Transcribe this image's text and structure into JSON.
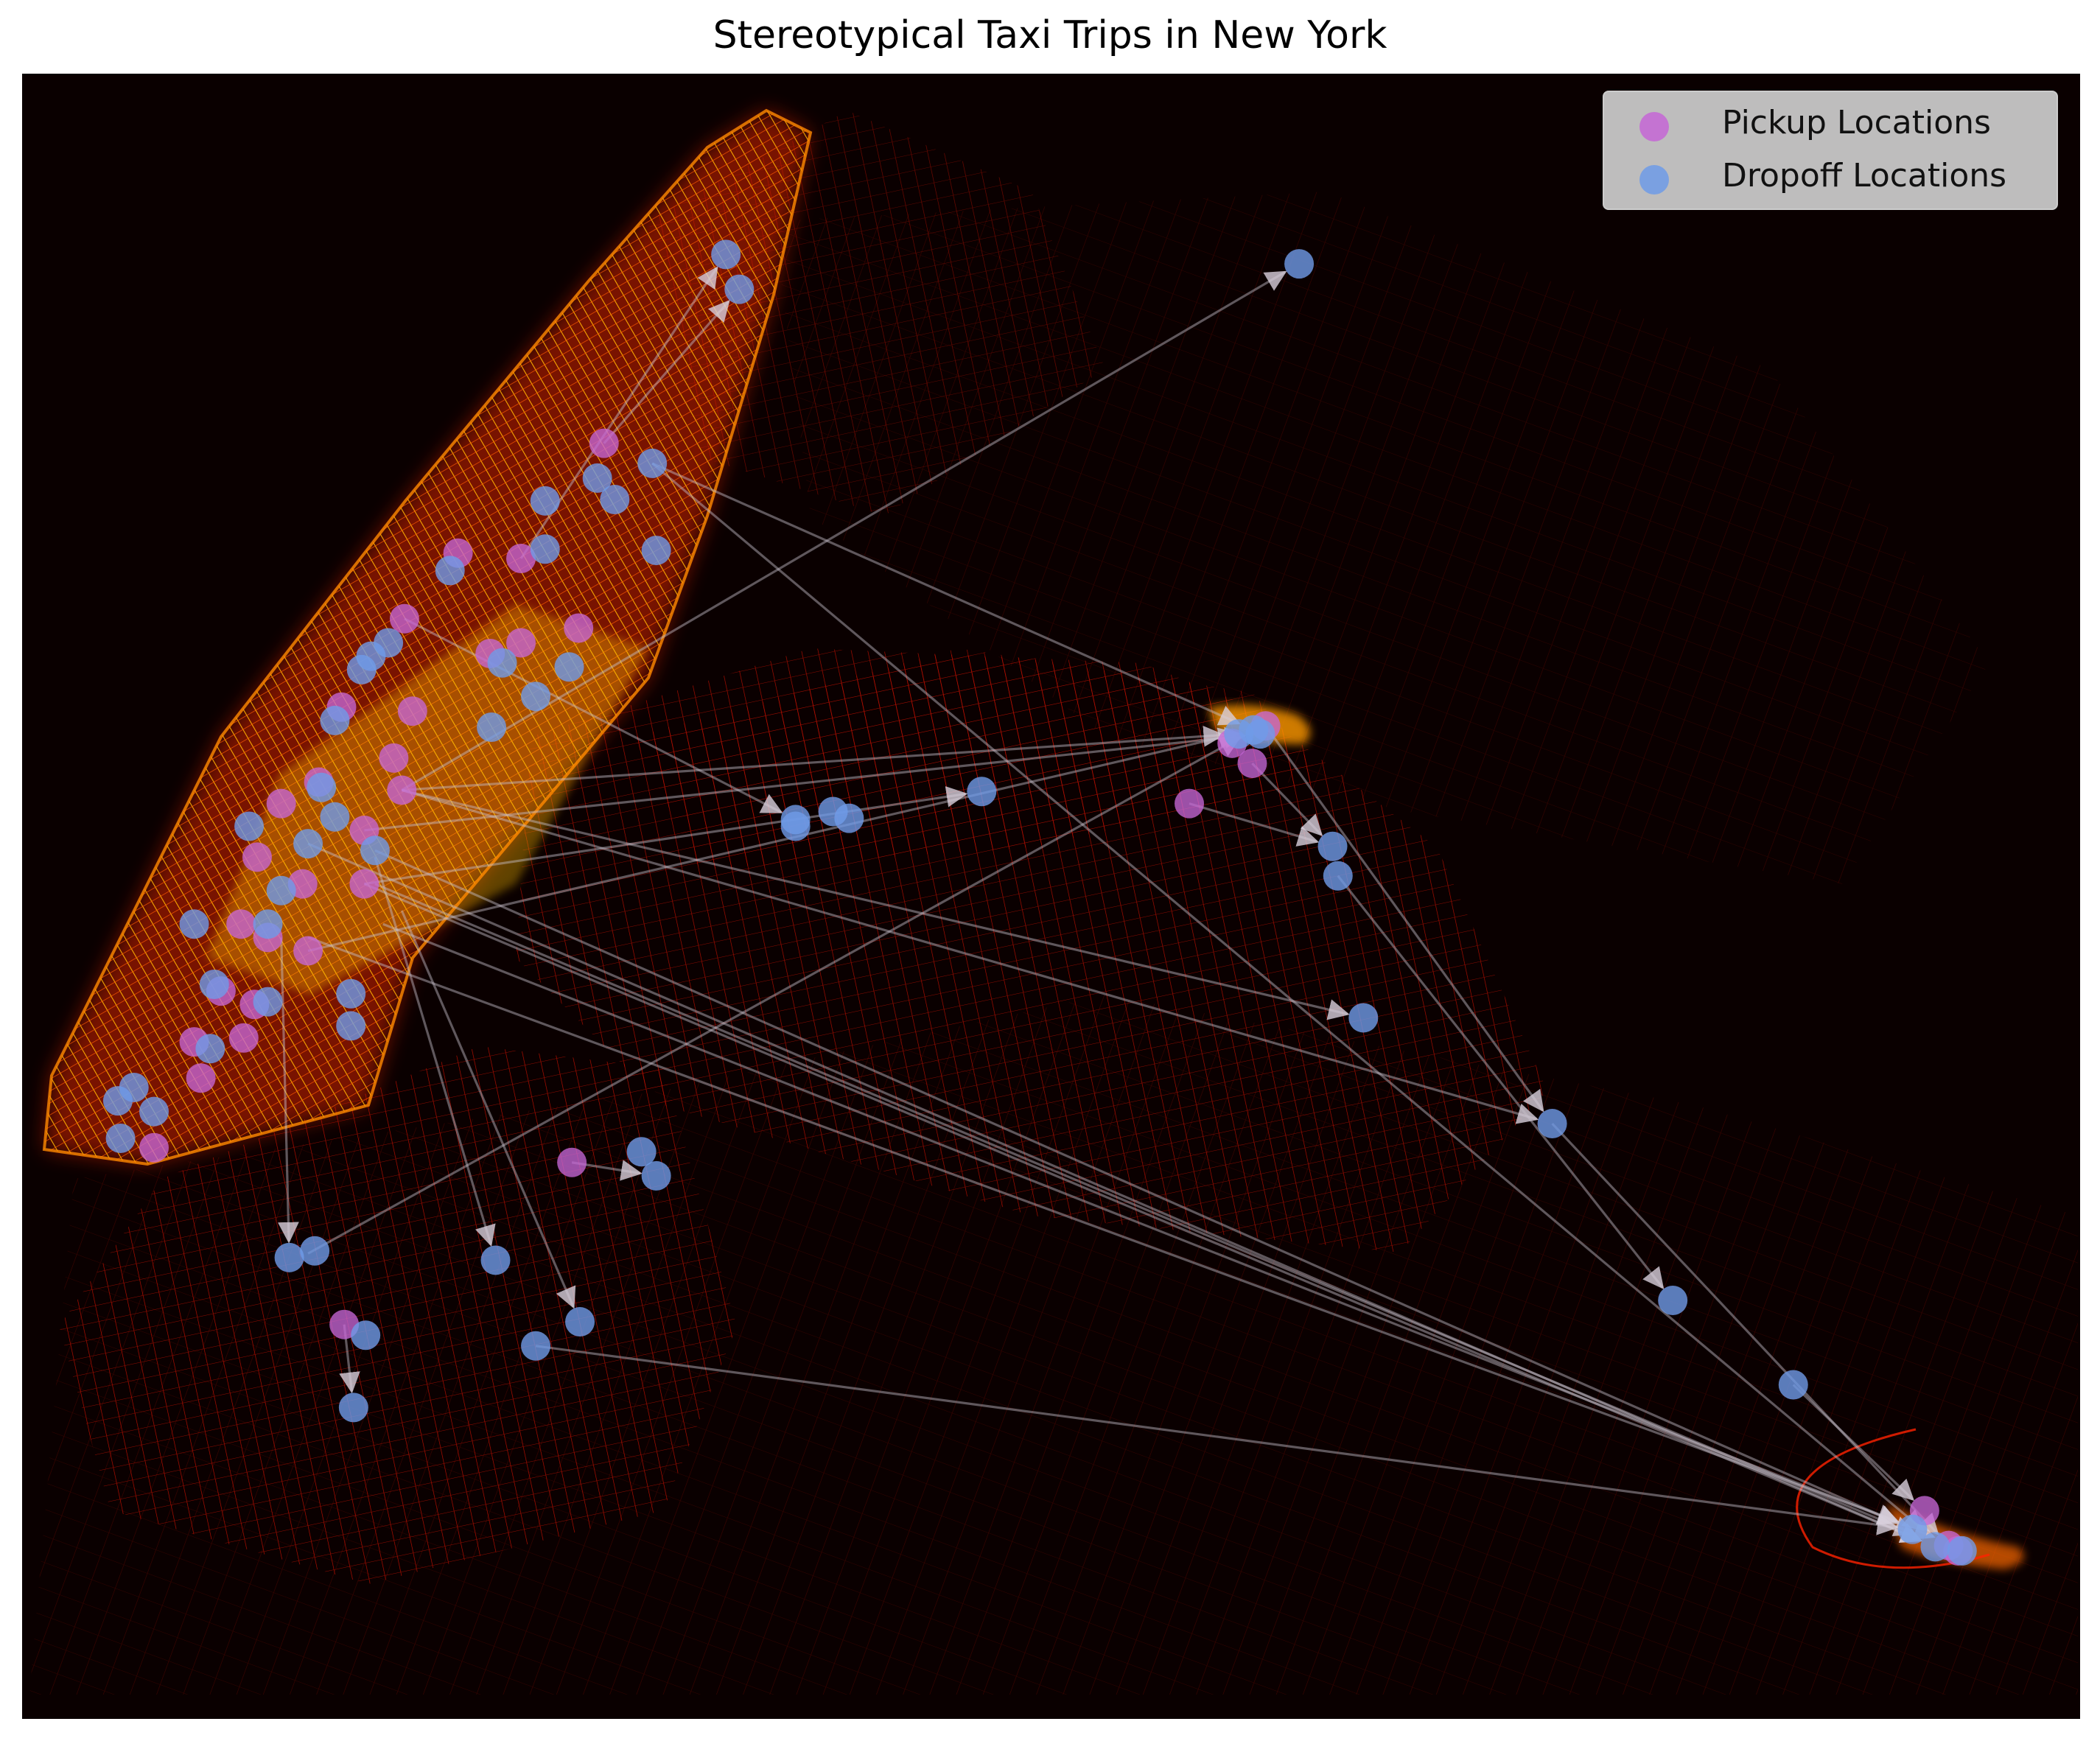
{
  "title": "Stereotypical Taxi Trips in New York",
  "legend": {
    "pickup_label": "Pickup Locations",
    "dropoff_label": "Dropoff Locations"
  },
  "colors": {
    "background": "#0a0000",
    "street_glow": "#ff2a00",
    "street_hot": "#ffd000",
    "pickup": "#c566d6",
    "dropoff": "#6f9be8",
    "trip_line": "#c8c0cc"
  },
  "chart_data": {
    "type": "scatter",
    "title": "Stereotypical Taxi Trips in New York",
    "xlabel": "",
    "ylabel": "",
    "axes_visible": false,
    "grid": false,
    "legend_position": "upper-right",
    "series": [
      {
        "name": "Pickup Locations",
        "marker_color": "#c566d6"
      },
      {
        "name": "Dropoff Locations",
        "marker_color": "#6f9be8"
      }
    ],
    "pickups": [
      [
        451,
        331
      ],
      [
        342,
        413
      ],
      [
        389,
        417
      ],
      [
        302,
        462
      ],
      [
        432,
        469
      ],
      [
        389,
        480
      ],
      [
        366,
        488
      ],
      [
        308,
        531
      ],
      [
        255,
        528
      ],
      [
        294,
        566
      ],
      [
        238,
        584
      ],
      [
        210,
        600
      ],
      [
        300,
        590
      ],
      [
        272,
        620
      ],
      [
        192,
        640
      ],
      [
        226,
        660
      ],
      [
        272,
        660
      ],
      [
        180,
        690
      ],
      [
        200,
        700
      ],
      [
        230,
        710
      ],
      [
        165,
        740
      ],
      [
        190,
        750
      ],
      [
        182,
        775
      ],
      [
        145,
        778
      ],
      [
        150,
        805
      ],
      [
        115,
        857
      ],
      [
        257,
        989
      ],
      [
        427,
        868
      ],
      [
        888,
        600
      ],
      [
        935,
        570
      ],
      [
        920,
        555
      ],
      [
        945,
        542
      ],
      [
        1437,
        1128
      ],
      [
        1462,
        1158
      ],
      [
        1455,
        1154
      ]
    ],
    "dropoffs": [
      [
        542,
        190
      ],
      [
        552,
        216
      ],
      [
        970,
        197
      ],
      [
        487,
        346
      ],
      [
        446,
        357
      ],
      [
        459,
        373
      ],
      [
        407,
        374
      ],
      [
        407,
        410
      ],
      [
        490,
        411
      ],
      [
        336,
        426
      ],
      [
        425,
        498
      ],
      [
        375,
        495
      ],
      [
        400,
        520
      ],
      [
        367,
        543
      ],
      [
        250,
        538
      ],
      [
        270,
        500
      ],
      [
        290,
        480
      ],
      [
        277,
        490
      ],
      [
        240,
        588
      ],
      [
        250,
        610
      ],
      [
        230,
        630
      ],
      [
        280,
        635
      ],
      [
        210,
        665
      ],
      [
        200,
        690
      ],
      [
        145,
        690
      ],
      [
        160,
        735
      ],
      [
        200,
        748
      ],
      [
        262,
        742
      ],
      [
        262,
        766
      ],
      [
        157,
        783
      ],
      [
        100,
        812
      ],
      [
        88,
        822
      ],
      [
        115,
        830
      ],
      [
        90,
        850
      ],
      [
        186,
        617
      ],
      [
        594,
        612
      ],
      [
        594,
        617
      ],
      [
        622,
        606
      ],
      [
        634,
        611
      ],
      [
        733,
        591
      ],
      [
        925,
        548
      ],
      [
        936,
        545
      ],
      [
        941,
        548
      ],
      [
        995,
        632
      ],
      [
        999,
        654
      ],
      [
        1018,
        760
      ],
      [
        479,
        860
      ],
      [
        490,
        878
      ],
      [
        370,
        941
      ],
      [
        216,
        939
      ],
      [
        235,
        934
      ],
      [
        273,
        997
      ],
      [
        264,
        1051
      ],
      [
        400,
        1005
      ],
      [
        433,
        987
      ],
      [
        1159,
        839
      ],
      [
        1249,
        971
      ],
      [
        1339,
        1034
      ],
      [
        1428,
        1142
      ],
      [
        1445,
        1155
      ],
      [
        1465,
        1158
      ]
    ],
    "trips": [
      [
        [
          451,
          331
        ],
        [
          552,
          216
        ]
      ],
      [
        [
          389,
          417
        ],
        [
          542,
          190
        ]
      ],
      [
        [
          300,
          590
        ],
        [
          970,
          197
        ]
      ],
      [
        [
          487,
          346
        ],
        [
          936,
          545
        ]
      ],
      [
        [
          300,
          590
        ],
        [
          925,
          548
        ]
      ],
      [
        [
          272,
          620
        ],
        [
          941,
          548
        ]
      ],
      [
        [
          230,
          710
        ],
        [
          936,
          545
        ]
      ],
      [
        [
          302,
          462
        ],
        [
          594,
          612
        ]
      ],
      [
        [
          272,
          660
        ],
        [
          733,
          591
        ]
      ],
      [
        [
          300,
          590
        ],
        [
          1018,
          760
        ]
      ],
      [
        [
          300,
          590
        ],
        [
          1159,
          839
        ]
      ],
      [
        [
          272,
          660
        ],
        [
          1445,
          1155
        ]
      ],
      [
        [
          230,
          630
        ],
        [
          1445,
          1155
        ]
      ],
      [
        [
          280,
          635
        ],
        [
          1428,
          1142
        ]
      ],
      [
        [
          280,
          660
        ],
        [
          1440,
          1150
        ]
      ],
      [
        [
          286,
          690
        ],
        [
          1455,
          1152
        ]
      ],
      [
        [
          230,
          936
        ],
        [
          936,
          545
        ]
      ],
      [
        [
          400,
          1005
        ],
        [
          1428,
          1142
        ]
      ],
      [
        [
          935,
          570
        ],
        [
          995,
          632
        ]
      ],
      [
        [
          888,
          600
        ],
        [
          995,
          632
        ]
      ],
      [
        [
          999,
          654
        ],
        [
          1249,
          971
        ]
      ],
      [
        [
          945,
          542
        ],
        [
          1159,
          839
        ]
      ],
      [
        [
          1339,
          1034
        ],
        [
          1437,
          1128
        ]
      ],
      [
        [
          1159,
          839
        ],
        [
          1455,
          1154
        ]
      ],
      [
        [
          427,
          868
        ],
        [
          490,
          878
        ]
      ],
      [
        [
          300,
          680
        ],
        [
          433,
          987
        ]
      ],
      [
        [
          280,
          640
        ],
        [
          370,
          941
        ]
      ],
      [
        [
          210,
          700
        ],
        [
          216,
          939
        ]
      ],
      [
        [
          257,
          989
        ],
        [
          264,
          1051
        ]
      ],
      [
        [
          487,
          346
        ],
        [
          1445,
          1150
        ]
      ],
      [
        [
          230,
          700
        ],
        [
          1428,
          1140
        ]
      ]
    ]
  }
}
